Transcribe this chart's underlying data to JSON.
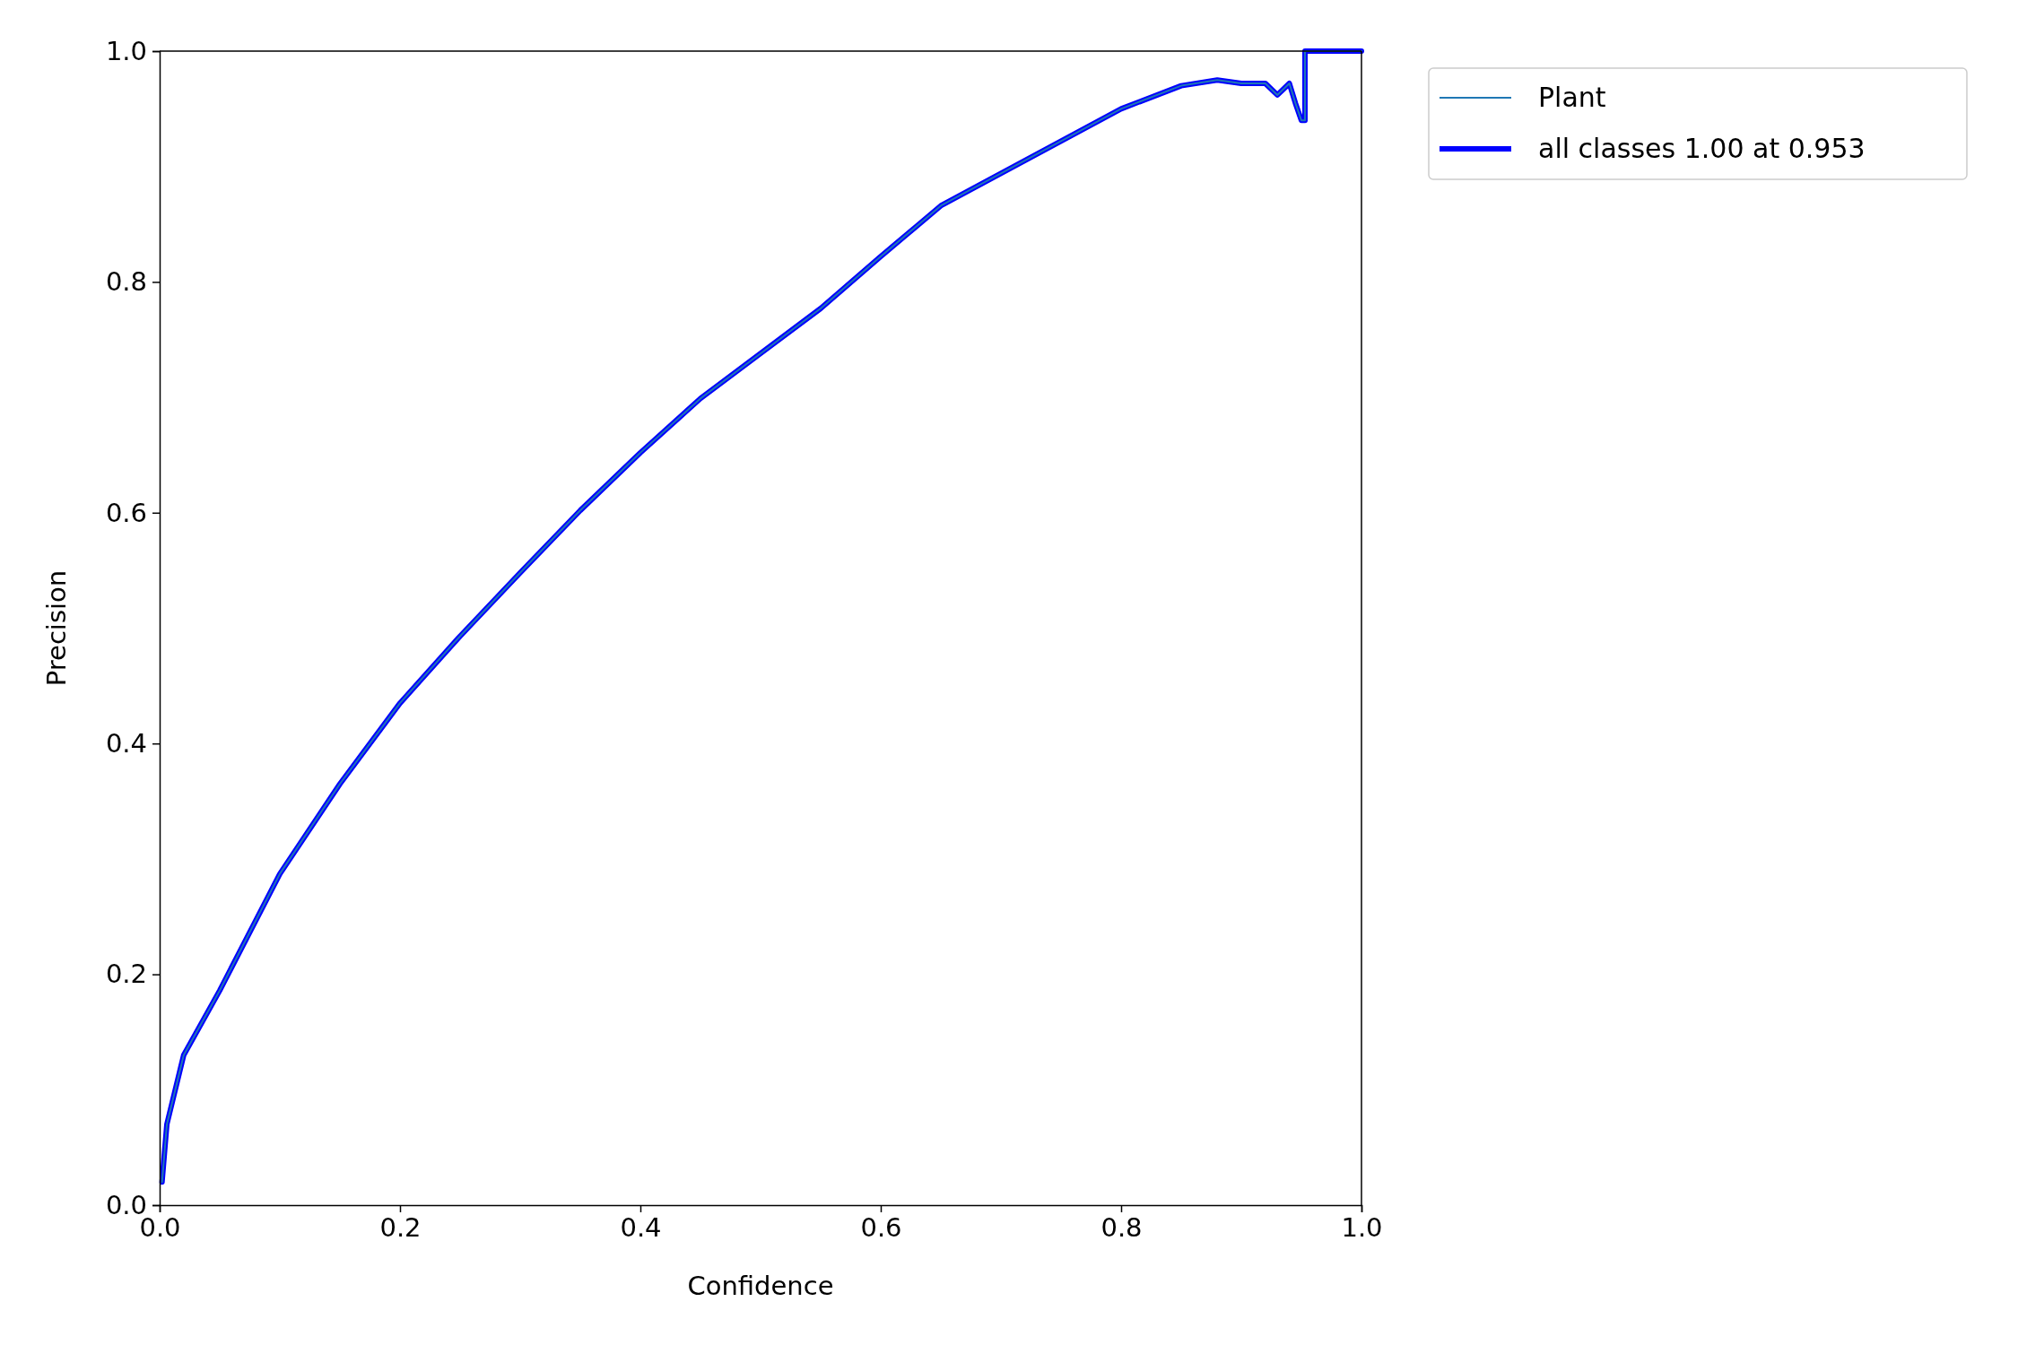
{
  "chart_data": {
    "type": "line",
    "xlabel": "Confidence",
    "ylabel": "Precision",
    "xlim": [
      0,
      1
    ],
    "ylim": [
      0,
      1
    ],
    "xticks": [
      {
        "value": 0,
        "label": "0.0"
      },
      {
        "value": 0.2,
        "label": "0.2"
      },
      {
        "value": 0.4,
        "label": "0.4"
      },
      {
        "value": 0.6,
        "label": "0.6"
      },
      {
        "value": 0.8,
        "label": "0.8"
      },
      {
        "value": 1,
        "label": "1.0"
      }
    ],
    "yticks": [
      {
        "value": 0,
        "label": "0.0"
      },
      {
        "value": 0.2,
        "label": "0.2"
      },
      {
        "value": 0.4,
        "label": "0.4"
      },
      {
        "value": 0.6,
        "label": "0.6"
      },
      {
        "value": 0.8,
        "label": "0.8"
      },
      {
        "value": 1,
        "label": "1.0"
      }
    ],
    "x": [
      0.002,
      0.006,
      0.02,
      0.05,
      0.1,
      0.15,
      0.2,
      0.25,
      0.3,
      0.35,
      0.4,
      0.45,
      0.5,
      0.55,
      0.6,
      0.65,
      0.7,
      0.75,
      0.8,
      0.85,
      0.88,
      0.9,
      0.92,
      0.93,
      0.935,
      0.94,
      0.945,
      0.95,
      0.953,
      0.953,
      1.0
    ],
    "series": [
      {
        "name": "all classes 1.00 at 0.953",
        "color": "#0000ff",
        "values": [
          0.02,
          0.07,
          0.13,
          0.186,
          0.287,
          0.365,
          0.435,
          0.493,
          0.548,
          0.602,
          0.652,
          0.699,
          0.738,
          0.777,
          0.822,
          0.866,
          0.894,
          0.922,
          0.95,
          0.97,
          0.975,
          0.972,
          0.972,
          0.962,
          0.967,
          0.972,
          0.955,
          0.94,
          0.94,
          1.0,
          1.0
        ]
      },
      {
        "name": "Plant",
        "color": "#1f77b4",
        "values": [
          0.02,
          0.07,
          0.13,
          0.186,
          0.287,
          0.365,
          0.435,
          0.493,
          0.548,
          0.602,
          0.652,
          0.699,
          0.738,
          0.777,
          0.822,
          0.866,
          0.894,
          0.922,
          0.95,
          0.97,
          0.975,
          0.972,
          0.972,
          0.962,
          0.967,
          0.972,
          0.955,
          0.94,
          0.94,
          1.0,
          1.0
        ]
      }
    ],
    "legend": "top right",
    "grid": false,
    "marker": "none",
    "line_style": "solid"
  }
}
